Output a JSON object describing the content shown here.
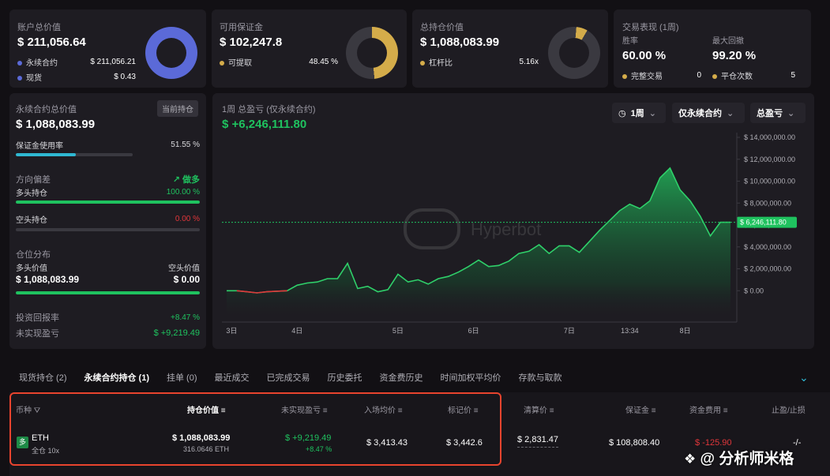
{
  "summary": {
    "account": {
      "label": "账户总价值",
      "value": "$ 211,056.64",
      "rows": [
        {
          "label": "永续合约",
          "value": "$ 211,056.21"
        },
        {
          "label": "现货",
          "value": "$ 0.43"
        }
      ],
      "donut": [
        0.999,
        0.001
      ],
      "colors": [
        "#5b6ad8",
        "#3c4a9a"
      ]
    },
    "margin": {
      "label": "可用保证金",
      "value": "$ 102,247.8",
      "rows": [
        {
          "label": "可提取",
          "value": "48.45 %"
        }
      ],
      "donut": [
        0.4845
      ],
      "colors": [
        "#d4ac4a",
        "#3a3940"
      ]
    },
    "position": {
      "label": "总持仓价值",
      "value": "$ 1,088,083.99",
      "rows": [
        {
          "label": "杠杆比",
          "value": "5.16x"
        }
      ],
      "donut": [
        0.07
      ],
      "colors": [
        "#d4ac4a",
        "#3a3940"
      ]
    },
    "trading": {
      "label": "交易表现 (1周)",
      "win_label": "胜率",
      "win_value": "60.00 %",
      "dd_label": "最大回撤",
      "dd_value": "99.20 %",
      "done_label": "完整交易",
      "done_value": "0",
      "close_label": "平仓次数",
      "close_value": "5"
    }
  },
  "perp": {
    "title": "永续合约总价值",
    "badge": "当前持仓",
    "value": "$ 1,088,083.99",
    "margin_usage_label": "保证金使用率",
    "margin_usage_value": "51.55 %",
    "margin_usage": 0.5155,
    "bias_label": "方向偏差",
    "bias_value": "做多",
    "long_label": "多头持仓",
    "long_value": "100.00 %",
    "long_pct": 1.0,
    "short_label": "空头持仓",
    "short_value": "0.00 %",
    "short_pct": 0.0,
    "dist_label": "仓位分布",
    "long_val_label": "多头价值",
    "short_val_label": "空头价值",
    "long_val": "$ 1,088,083.99",
    "short_val": "$ 0.00",
    "dist_pct": 1.0,
    "roi_label": "投资回报率",
    "roi_value": "+8.47 %",
    "unreal_label": "未实现盈亏",
    "unreal_value": "$ +9,219.49"
  },
  "chart_panel": {
    "title": "1周 总盈亏 (仅永续合约)",
    "value": "$ +6,246,111.80",
    "period_btn": "1周",
    "filter_btn": "仅永续合约",
    "metric_btn": "总盈亏",
    "watermark": "Hyperbot",
    "current_label": "$ 6,246,111.80"
  },
  "chart_data": {
    "type": "area",
    "y_ticks": [
      "$ 14,000,000.00",
      "$ 12,000,000.00",
      "$ 10,000,000.00",
      "$ 8,000,000.00",
      "$ 6,000,000.00",
      "$ 4,000,000.00",
      "$ 2,000,000.00",
      "$ 0.00"
    ],
    "ylim": [
      -2000000,
      14000000
    ],
    "x_ticks": [
      {
        "label": "3日",
        "x": 0.5
      },
      {
        "label": "4日",
        "x": 7
      },
      {
        "label": "5日",
        "x": 17
      },
      {
        "label": "6日",
        "x": 24.5
      },
      {
        "label": "7日",
        "x": 34
      },
      {
        "label": "13:34",
        "x": 40
      },
      {
        "label": "8日",
        "x": 45.5
      }
    ],
    "xlim": [
      0,
      50
    ],
    "current_value": 6246111.8,
    "x": [
      0,
      1,
      2,
      3,
      4,
      5,
      6,
      7,
      8,
      9,
      10,
      11,
      12,
      13,
      14,
      15,
      16,
      17,
      18,
      19,
      20,
      21,
      22,
      23,
      24,
      25,
      26,
      27,
      28,
      29,
      30,
      31,
      32,
      33,
      34,
      35,
      36,
      37,
      38,
      39,
      40,
      41,
      42,
      43,
      44,
      45,
      46,
      47,
      48,
      49,
      50
    ],
    "values": [
      0,
      0,
      -100000,
      -200000,
      -100000,
      -50000,
      0,
      500000,
      700000,
      800000,
      1100000,
      1100000,
      2500000,
      200000,
      400000,
      -100000,
      100000,
      1500000,
      800000,
      1000000,
      600000,
      1100000,
      1300000,
      1700000,
      2200000,
      2800000,
      2200000,
      2300000,
      2700000,
      3400000,
      3600000,
      4200000,
      3400000,
      4100000,
      4100000,
      3500000,
      4500000,
      5500000,
      6400000,
      7300000,
      7900000,
      7500000,
      8200000,
      10300000,
      11200000,
      9200000,
      8200000,
      6800000,
      5000000,
      6246111.8,
      6246111.8
    ]
  },
  "tabs": [
    "现货持仓 (2)",
    "永续合约持仓 (1)",
    "挂单 (0)",
    "最近成交",
    "已完成交易",
    "历史委托",
    "资金费历史",
    "时间加权平均价",
    "存款与取款"
  ],
  "table": {
    "headers": {
      "coin": "币种",
      "value": "持仓价值",
      "unreal": "未实现盈亏",
      "entry": "入场均价",
      "mark": "标记价",
      "liq": "清算价",
      "margin": "保证金",
      "funding": "资金费用",
      "tpsl": "止盈/止损"
    },
    "row": {
      "side": "多",
      "coin": "ETH",
      "mode": "全仓 10x",
      "value": "$ 1,088,083.99",
      "qty": "316.0646 ETH",
      "unreal": "$ +9,219.49",
      "unreal_pct": "+8.47 %",
      "entry": "$ 3,413.43",
      "mark": "$ 3,442.6",
      "liq": "$ 2,831.47",
      "margin": "$ 108,808.40",
      "funding": "$ -125.90",
      "tpsl": "-/-"
    }
  },
  "watermark": "@ 分析师米格"
}
